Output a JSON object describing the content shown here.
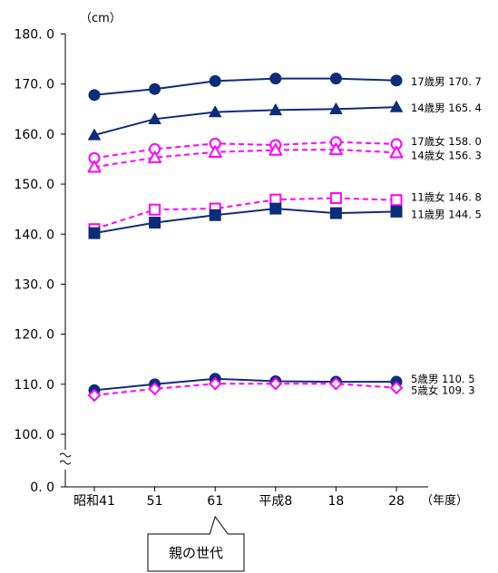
{
  "chart_data": {
    "type": "line",
    "y_unit": "（cm）",
    "x_unit": "（年度）",
    "categories": [
      "昭和41",
      "51",
      "61",
      "平成8",
      "18",
      "28"
    ],
    "y_ticks": [
      "180. 0",
      "170. 0",
      "160. 0",
      "150. 0",
      "140. 0",
      "130. 0",
      "120. 0",
      "110. 0",
      "100. 0",
      "0. 0"
    ],
    "ylim": [
      100,
      180
    ],
    "axis_break": true,
    "grid": false,
    "series": [
      {
        "name": "17歳男",
        "values": [
          167.8,
          169.0,
          170.6,
          171.1,
          171.1,
          170.7
        ],
        "end_label": "17歳男 170. 7",
        "color": "#0d2d7a",
        "marker": "circle-filled",
        "dashed": false
      },
      {
        "name": "14歳男",
        "values": [
          159.8,
          163.0,
          164.4,
          164.8,
          165.0,
          165.4
        ],
        "end_label": "14歳男 165. 4",
        "color": "#0d2d7a",
        "marker": "triangle-filled",
        "dashed": false
      },
      {
        "name": "17歳女",
        "values": [
          155.2,
          157.0,
          158.1,
          157.8,
          158.4,
          158.0
        ],
        "end_label": "17歳女 158. 0",
        "color": "#ff00ff",
        "marker": "circle-open",
        "dashed": true
      },
      {
        "name": "14歳女",
        "values": [
          153.4,
          155.3,
          156.4,
          156.8,
          156.9,
          156.3
        ],
        "end_label": "14歳女 156. 3",
        "color": "#ff00ff",
        "marker": "triangle-open",
        "dashed": true
      },
      {
        "name": "11歳女",
        "values": [
          141.0,
          144.9,
          145.1,
          146.9,
          147.2,
          146.8
        ],
        "end_label": "11歳女 146. 8",
        "color": "#ff00ff",
        "marker": "square-open",
        "dashed": true
      },
      {
        "name": "11歳男",
        "values": [
          140.2,
          142.3,
          143.8,
          145.1,
          144.2,
          144.5
        ],
        "end_label": "11歳男 144. 5",
        "color": "#0d2d7a",
        "marker": "square-filled",
        "dashed": false
      },
      {
        "name": "5歳男",
        "values": [
          108.8,
          110.0,
          111.1,
          110.6,
          110.5,
          110.5
        ],
        "end_label": "5歳男 110. 5",
        "color": "#0d2d7a",
        "marker": "circle-filled",
        "dashed": false
      },
      {
        "name": "5歳女",
        "values": [
          107.8,
          109.1,
          110.1,
          110.1,
          110.1,
          109.3
        ],
        "end_label": "5歳女 109. 3",
        "color": "#ff00ff",
        "marker": "diamond-open",
        "dashed": true
      }
    ],
    "callout": {
      "text": "親の世代",
      "category": "61"
    }
  }
}
